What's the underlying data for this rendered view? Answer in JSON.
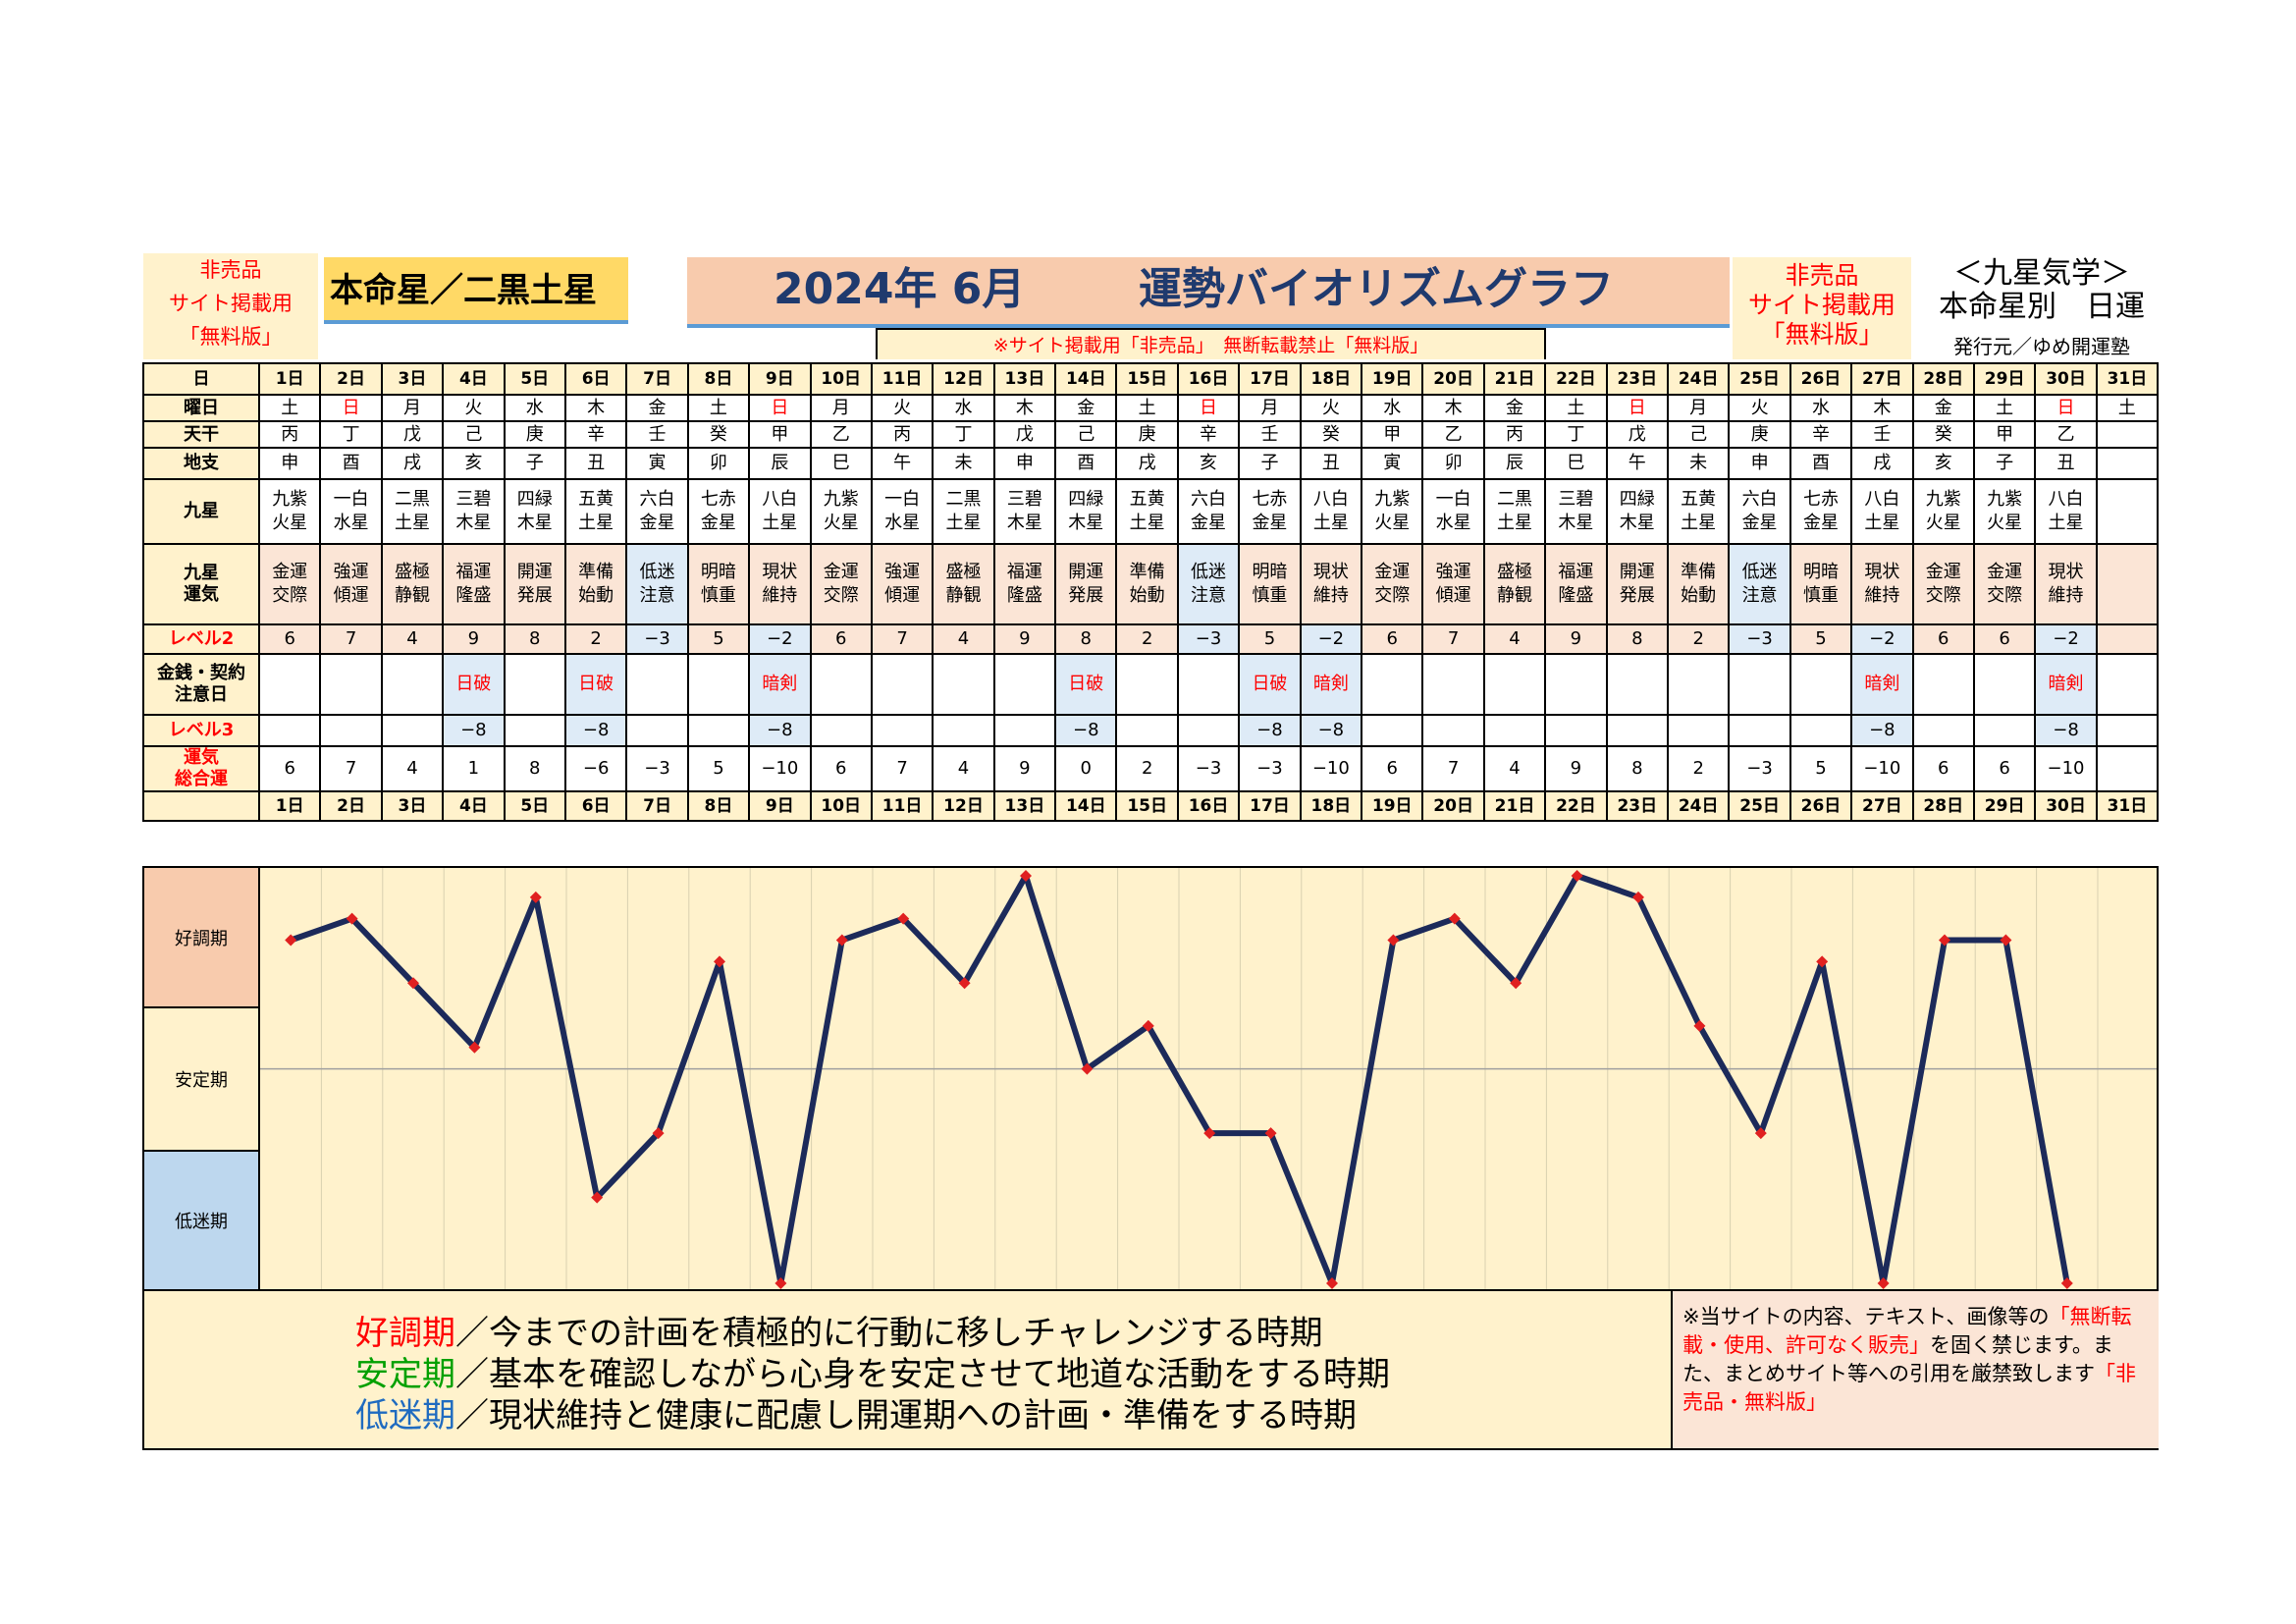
{
  "header": {
    "left_notice": [
      "非売品",
      "サイト掲載用",
      "「無料版」"
    ],
    "honmei": "本命星／二黒土星",
    "title_year": "2024年 6月",
    "title_main": "運勢バイオリズムグラフ",
    "right_notice": [
      "非売品",
      "サイト掲載用",
      "「無料版」"
    ],
    "kyusei_title": "＜九星気学＞",
    "kyusei_sub": "本命星別　日運",
    "publisher": "発行元／ゆめ開運塾",
    "notice_bar": "※サイト掲載用「非売品」　無断転載禁止「無料版」"
  },
  "row_labels": {
    "day": "日",
    "weekday": "曜日",
    "tenkan": "天干",
    "chishi": "地支",
    "kyusei": "九星",
    "kyusei_unki": [
      "九星",
      "運気"
    ],
    "level2": "レベル2",
    "kinsen": [
      "金銭・契約",
      "注意日"
    ],
    "level3": "レベル3",
    "total": [
      "運気",
      "総合運"
    ]
  },
  "days": [
    "1日",
    "2日",
    "3日",
    "4日",
    "5日",
    "6日",
    "7日",
    "8日",
    "9日",
    "10日",
    "11日",
    "12日",
    "13日",
    "14日",
    "15日",
    "16日",
    "17日",
    "18日",
    "19日",
    "20日",
    "21日",
    "22日",
    "23日",
    "24日",
    "25日",
    "26日",
    "27日",
    "28日",
    "29日",
    "30日",
    "31日"
  ],
  "weekdays": [
    "土",
    "日",
    "月",
    "火",
    "水",
    "木",
    "金",
    "土",
    "日",
    "月",
    "火",
    "水",
    "木",
    "金",
    "土",
    "日",
    "月",
    "火",
    "水",
    "木",
    "金",
    "土",
    "日",
    "月",
    "火",
    "水",
    "木",
    "金",
    "土",
    "日",
    "土"
  ],
  "sunday_indices": [
    1,
    8,
    15,
    22,
    29
  ],
  "tenkan": [
    "丙",
    "丁",
    "戊",
    "己",
    "庚",
    "辛",
    "壬",
    "癸",
    "甲",
    "乙",
    "丙",
    "丁",
    "戊",
    "己",
    "庚",
    "辛",
    "壬",
    "癸",
    "甲",
    "乙",
    "丙",
    "丁",
    "戊",
    "己",
    "庚",
    "辛",
    "壬",
    "癸",
    "甲",
    "乙",
    ""
  ],
  "chishi": [
    "申",
    "酉",
    "戌",
    "亥",
    "子",
    "丑",
    "寅",
    "卯",
    "辰",
    "巳",
    "午",
    "未",
    "申",
    "酉",
    "戌",
    "亥",
    "子",
    "丑",
    "寅",
    "卯",
    "辰",
    "巳",
    "午",
    "未",
    "申",
    "酉",
    "戌",
    "亥",
    "子",
    "丑",
    ""
  ],
  "kyusei": [
    [
      "九紫",
      "火星"
    ],
    [
      "一白",
      "水星"
    ],
    [
      "二黒",
      "土星"
    ],
    [
      "三碧",
      "木星"
    ],
    [
      "四緑",
      "木星"
    ],
    [
      "五黄",
      "土星"
    ],
    [
      "六白",
      "金星"
    ],
    [
      "七赤",
      "金星"
    ],
    [
      "八白",
      "土星"
    ],
    [
      "九紫",
      "火星"
    ],
    [
      "一白",
      "水星"
    ],
    [
      "二黒",
      "土星"
    ],
    [
      "三碧",
      "木星"
    ],
    [
      "四緑",
      "木星"
    ],
    [
      "五黄",
      "土星"
    ],
    [
      "六白",
      "金星"
    ],
    [
      "七赤",
      "金星"
    ],
    [
      "八白",
      "土星"
    ],
    [
      "九紫",
      "火星"
    ],
    [
      "一白",
      "水星"
    ],
    [
      "二黒",
      "土星"
    ],
    [
      "三碧",
      "木星"
    ],
    [
      "四緑",
      "木星"
    ],
    [
      "五黄",
      "土星"
    ],
    [
      "六白",
      "金星"
    ],
    [
      "七赤",
      "金星"
    ],
    [
      "八白",
      "土星"
    ],
    [
      "九紫",
      "火星"
    ],
    [
      "九紫",
      "火星"
    ],
    [
      "八白",
      "土星"
    ],
    [
      "",
      ""
    ]
  ],
  "unki": [
    [
      "金運",
      "交際"
    ],
    [
      "強運",
      "傾運"
    ],
    [
      "盛極",
      "静観"
    ],
    [
      "福運",
      "隆盛"
    ],
    [
      "開運",
      "発展"
    ],
    [
      "準備",
      "始動"
    ],
    [
      "低迷",
      "注意"
    ],
    [
      "明暗",
      "慎重"
    ],
    [
      "現状",
      "維持"
    ],
    [
      "金運",
      "交際"
    ],
    [
      "強運",
      "傾運"
    ],
    [
      "盛極",
      "静観"
    ],
    [
      "福運",
      "隆盛"
    ],
    [
      "開運",
      "発展"
    ],
    [
      "準備",
      "始動"
    ],
    [
      "低迷",
      "注意"
    ],
    [
      "明暗",
      "慎重"
    ],
    [
      "現状",
      "維持"
    ],
    [
      "金運",
      "交際"
    ],
    [
      "強運",
      "傾運"
    ],
    [
      "盛極",
      "静観"
    ],
    [
      "福運",
      "隆盛"
    ],
    [
      "開運",
      "発展"
    ],
    [
      "準備",
      "始動"
    ],
    [
      "低迷",
      "注意"
    ],
    [
      "明暗",
      "慎重"
    ],
    [
      "現状",
      "維持"
    ],
    [
      "金運",
      "交際"
    ],
    [
      "金運",
      "交際"
    ],
    [
      "現状",
      "維持"
    ],
    [
      "",
      ""
    ]
  ],
  "level2": [
    "6",
    "7",
    "4",
    "9",
    "8",
    "2",
    "−3",
    "5",
    "−2",
    "6",
    "7",
    "4",
    "9",
    "8",
    "2",
    "−3",
    "5",
    "−2",
    "6",
    "7",
    "4",
    "9",
    "8",
    "2",
    "−3",
    "5",
    "−2",
    "6",
    "6",
    "−2",
    ""
  ],
  "kinsen": [
    "",
    "",
    "",
    "日破",
    "",
    "日破",
    "",
    "",
    "暗剣",
    "",
    "",
    "",
    "",
    "日破",
    "",
    "",
    "日破",
    "暗剣",
    "",
    "",
    "",
    "",
    "",
    "",
    "",
    "",
    "暗剣",
    "",
    "",
    "暗剣",
    ""
  ],
  "level3": [
    "",
    "",
    "",
    "−8",
    "",
    "−8",
    "",
    "",
    "−8",
    "",
    "",
    "",
    "",
    "−8",
    "",
    "",
    "−8",
    "−8",
    "",
    "",
    "",
    "",
    "",
    "",
    "",
    "",
    "−8",
    "",
    "",
    "−8",
    ""
  ],
  "total": [
    "6",
    "7",
    "4",
    "1",
    "8",
    "−6",
    "−3",
    "5",
    "−10",
    "6",
    "7",
    "4",
    "9",
    "0",
    "2",
    "−3",
    "−3",
    "−10",
    "6",
    "7",
    "4",
    "9",
    "8",
    "2",
    "−3",
    "5",
    "−10",
    "6",
    "6",
    "−10",
    ""
  ],
  "bands": {
    "good": "好調期",
    "stable": "安定期",
    "low": "低迷期"
  },
  "chart_data": {
    "type": "line",
    "x": [
      "1日",
      "2日",
      "3日",
      "4日",
      "5日",
      "6日",
      "7日",
      "8日",
      "9日",
      "10日",
      "11日",
      "12日",
      "13日",
      "14日",
      "15日",
      "16日",
      "17日",
      "18日",
      "19日",
      "20日",
      "21日",
      "22日",
      "23日",
      "24日",
      "25日",
      "26日",
      "27日",
      "28日",
      "29日",
      "30日"
    ],
    "series": [
      {
        "values": [
          6,
          7,
          4,
          1,
          8,
          -6,
          -3,
          5,
          -10,
          6,
          7,
          4,
          9,
          0,
          2,
          -3,
          -3,
          -10,
          6,
          7,
          4,
          9,
          8,
          2,
          -3,
          5,
          -10,
          6,
          6,
          -10
        ]
      }
    ],
    "ylim": [
      -10,
      9
    ],
    "line_color": "#1c2a5a",
    "marker_color": "#e02020",
    "midline": 0
  },
  "footer": {
    "good_label": "好調期",
    "good_text": "／今までの計画を積極的に行動に移しチャレンジする時期",
    "stable_label": "安定期",
    "stable_text": "／基本を確認しながら心身を安定させて地道な活動をする時期",
    "low_label": "低迷期",
    "low_text": "／現状維持と健康に配慮し開運期への計画・準備をする時期",
    "copyright_1": "※当サイトの内容、テキスト、画像等の",
    "copyright_red": "「無断転載・使用、許可なく販売」",
    "copyright_2": "を固く禁じます。また、まとめサイト等への引用を厳禁致します",
    "copyright_red2": "「非売品・無料版」"
  }
}
